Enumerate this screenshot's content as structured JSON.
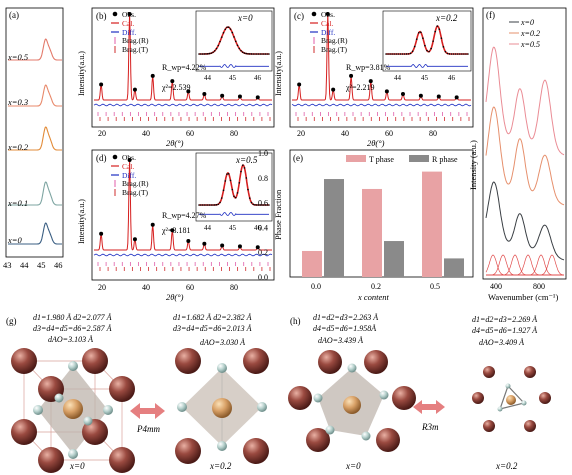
{
  "panel_a": {
    "label": "(a)",
    "series": [
      {
        "name": "x=0.5",
        "color": "#e37a6b"
      },
      {
        "name": "x=0.3",
        "color": "#e8896b"
      },
      {
        "name": "x=0.2",
        "color": "#e28b38"
      },
      {
        "name": "x=0.1",
        "color": "#7ea5a2"
      },
      {
        "name": "x=0",
        "color": "#3b5f83"
      }
    ],
    "xticks": [
      "43",
      "44",
      "45",
      "46"
    ]
  },
  "panel_b": {
    "label": "(b)",
    "x": "x=0",
    "rwp": "R_wp=4.22%",
    "chi": "χ²=2.539",
    "inset_ticks": [
      "44",
      "45",
      "46"
    ]
  },
  "panel_c": {
    "label": "(c)",
    "x": "x=0.2",
    "rwp": "R_wp=3.81%",
    "chi": "χ²=2.219",
    "inset_ticks": [
      "44",
      "45",
      "46"
    ]
  },
  "panel_d": {
    "label": "(d)",
    "x": "x=0.5",
    "rwp": "R_wp=4.27%",
    "chi": "χ²=3.181",
    "inset_ticks": [
      "44",
      "45",
      "46"
    ]
  },
  "refine_legend": [
    "Obs.",
    "Cal.",
    "Diff.",
    "Brag.(R)",
    "Brag.(T)"
  ],
  "refine_axes": {
    "ylabel": "Intensity(a.u.)",
    "xlabel": "2θ(°)",
    "xticks": [
      "20",
      "40",
      "60",
      "80"
    ]
  },
  "chart_data": {
    "type": "bar",
    "title": "",
    "label": "(e)",
    "categories": [
      "0.0",
      "0.2",
      "0.5"
    ],
    "series": [
      {
        "name": "T phase",
        "values": [
          0.21,
          0.71,
          0.85
        ],
        "color": "#e8a2a4"
      },
      {
        "name": "R phase",
        "values": [
          0.79,
          0.29,
          0.15
        ],
        "color": "#8a8a8a"
      }
    ],
    "xlabel": "x content",
    "ylabel": "Phase Fraction",
    "ylim": [
      0,
      1.0
    ],
    "yticks": [
      "0.0",
      "0.2",
      "0.4",
      "0.6",
      "0.8",
      "1.0"
    ]
  },
  "panel_f": {
    "label": "(f)",
    "legend": [
      "x=0",
      "x=0.2",
      "x=0.5"
    ],
    "ylabel": "Intensity (a.u.)",
    "xlabel": "Wavenumber (cm⁻¹)",
    "xticks": [
      "400",
      "800"
    ]
  },
  "panel_g": {
    "label": "(g)",
    "left": {
      "l1": "d1=1.980 Å d2=2.077 Å",
      "l2": "d3=d4=d5=d6=2.587 Å",
      "l3": "dAO=3.103 Å",
      "x": "x=0"
    },
    "right": {
      "l1": "d1=1.682 Å d2=2.382 Å",
      "l2": "d3=d4=d5=d6=2.013 Å",
      "l3": "dAO=3.030 Å",
      "x": "x=0.2"
    },
    "arrow": "P4mm"
  },
  "panel_h": {
    "label": "(h)",
    "left": {
      "l1": "d1=d2=d3=2.263 Å",
      "l2": "d4=d5=d6=1.958Å",
      "l3": "dAO=3.439 Å",
      "x": "x=0"
    },
    "right": {
      "l1": "d1=d2=d3=2.269 Å",
      "l2": "d4=d5=d6=1.927 Å",
      "l3": "dAO=3.409 Å",
      "x": "x=0.2"
    },
    "arrow": "R3m"
  }
}
